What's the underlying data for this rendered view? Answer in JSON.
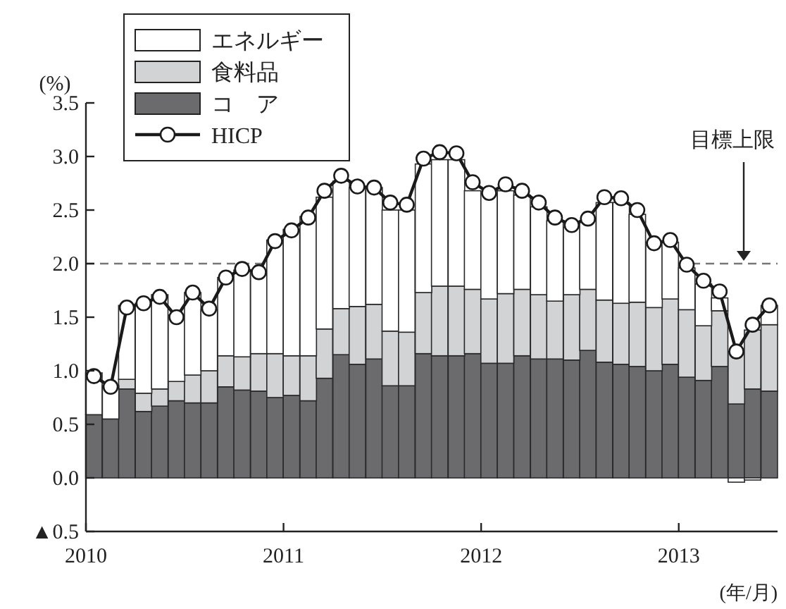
{
  "chart_data": {
    "type": "bar",
    "stacked": true,
    "ylabel": "(%)",
    "xlabel": "(年/月)",
    "x": [
      "2010-01-16",
      "2010-02-15",
      "2010-03-16",
      "2010-04-16",
      "2010-05-16",
      "2010-06-16",
      "2010-07-16",
      "2010-08-16",
      "2010-09-16",
      "2010-10-16",
      "2010-11-16",
      "2010-12-16",
      "2011-01-16",
      "2011-02-15",
      "2011-03-16",
      "2011-04-16",
      "2011-05-16",
      "2011-06-16",
      "2011-07-16",
      "2011-08-16",
      "2011-09-16",
      "2011-10-16",
      "2011-11-16",
      "2011-12-16",
      "2012-01-16",
      "2012-02-15",
      "2012-03-16",
      "2012-04-16",
      "2012-05-16",
      "2012-06-16",
      "2012-07-16",
      "2012-08-16",
      "2012-09-16",
      "2012-10-16",
      "2012-11-16",
      "2012-12-16",
      "2013-01-16",
      "2013-02-15",
      "2013-03-16",
      "2013-04-16",
      "2013-05-16",
      "2013-06-16"
    ],
    "xlim": [
      "2010-01",
      "2013-07"
    ],
    "xticks": [
      "2010",
      "2011",
      "2012",
      "2013"
    ],
    "ylim": [
      -0.5,
      3.5
    ],
    "yticks": [
      {
        "value": -0.5,
        "label": "▲0.5"
      },
      {
        "value": 0,
        "label": "0.0"
      },
      0.5,
      {
        "value": 1,
        "label": "1.0"
      },
      1.5,
      {
        "value": 2,
        "label": "2.0"
      },
      2.5,
      {
        "value": 3,
        "label": "3.0"
      },
      3.5
    ],
    "legend": "top left",
    "series": [
      {
        "name": "コ　ア",
        "color": "#6b6b6e",
        "values": [
          0.59,
          0.55,
          0.83,
          0.62,
          0.67,
          0.72,
          0.7,
          0.7,
          0.85,
          0.82,
          0.81,
          0.75,
          0.77,
          0.72,
          0.93,
          1.15,
          1.06,
          1.11,
          0.86,
          0.86,
          1.16,
          1.14,
          1.14,
          1.16,
          1.07,
          1.07,
          1.14,
          1.11,
          1.11,
          1.1,
          1.19,
          1.08,
          1.06,
          1.04,
          1.0,
          1.06,
          0.94,
          0.91,
          1.04,
          0.69,
          0.83,
          0.81
        ]
      },
      {
        "name": "食料品",
        "color": "#d2d3d5",
        "values": [
          0,
          0,
          0.09,
          0.17,
          0.16,
          0.18,
          0.26,
          0.3,
          0.29,
          0.31,
          0.35,
          0.41,
          0.37,
          0.42,
          0.46,
          0.43,
          0.54,
          0.51,
          0.51,
          0.5,
          0.57,
          0.65,
          0.65,
          0.6,
          0.6,
          0.65,
          0.62,
          0.6,
          0.54,
          0.61,
          0.57,
          0.58,
          0.57,
          0.6,
          0.59,
          0.61,
          0.63,
          0.51,
          0.52,
          0.49,
          0.55,
          0.62
        ]
      },
      {
        "name": "エネルギー",
        "color": "#ffffff",
        "values": [
          0.39,
          0.31,
          0.69,
          0.84,
          0.88,
          0.62,
          0.77,
          0.57,
          0.73,
          0.81,
          0.76,
          1.06,
          1.18,
          1.3,
          1.23,
          1.19,
          1.11,
          1.09,
          1.13,
          1.14,
          1.2,
          1.18,
          1.18,
          0.92,
          0.98,
          0.96,
          0.88,
          0.82,
          0.75,
          0.63,
          0.64,
          0.91,
          0.94,
          0.82,
          0.61,
          0.53,
          0.39,
          0.39,
          0.12,
          -0.04,
          -0.02,
          0.18
        ]
      },
      {
        "name": "HICP",
        "type": "line",
        "color": "#1a1a1a",
        "marker": "circle",
        "line_style": "solid",
        "values": [
          0.95,
          0.85,
          1.59,
          1.63,
          1.69,
          1.5,
          1.73,
          1.58,
          1.87,
          1.95,
          1.92,
          2.21,
          2.31,
          2.43,
          2.68,
          2.82,
          2.72,
          2.71,
          2.57,
          2.55,
          2.98,
          3.04,
          3.03,
          2.76,
          2.66,
          2.74,
          2.68,
          2.57,
          2.43,
          2.36,
          2.42,
          2.62,
          2.61,
          2.5,
          2.19,
          2.22,
          1.99,
          1.84,
          1.74,
          1.18,
          1.43,
          1.61
        ]
      }
    ],
    "ref_lines": [
      {
        "axis": "y",
        "value": 2.0,
        "label": "目標上限",
        "color": "#777777",
        "line_style": "dashed"
      }
    ]
  }
}
